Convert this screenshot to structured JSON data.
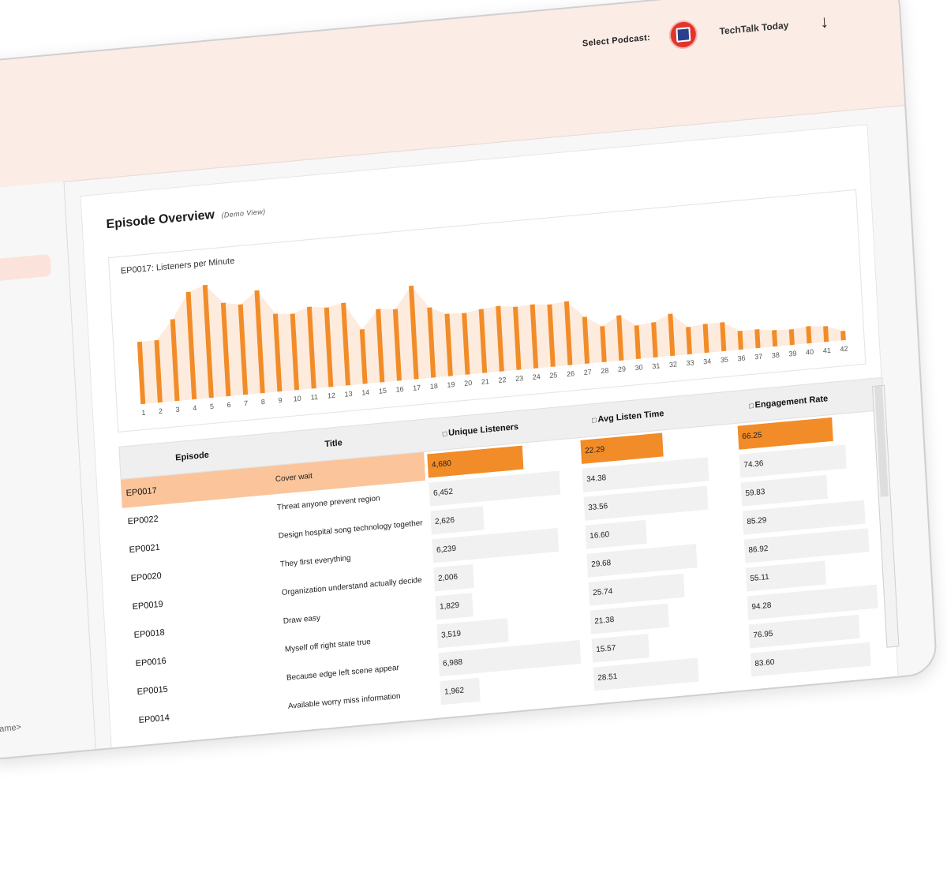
{
  "header": {
    "select_label": "Select Podcast:",
    "podcast_name": "TechTalk Today",
    "arrow_icon": "arrow-down-icon"
  },
  "sidebar": {
    "user_text": "ame>"
  },
  "main": {
    "title": "Episode Overview",
    "subtitle": "(Demo View)"
  },
  "chart_data": {
    "type": "bar",
    "title": "EP0017: Listeners per Minute",
    "categories": [
      "1",
      "2",
      "3",
      "4",
      "5",
      "6",
      "7",
      "8",
      "9",
      "10",
      "11",
      "12",
      "13",
      "14",
      "15",
      "16",
      "17",
      "18",
      "19",
      "20",
      "21",
      "22",
      "23",
      "24",
      "25",
      "26",
      "27",
      "28",
      "29",
      "30",
      "31",
      "32",
      "33",
      "34",
      "35",
      "36",
      "37",
      "38",
      "39",
      "40",
      "41",
      "42"
    ],
    "values": [
      80,
      80,
      105,
      138,
      145,
      120,
      116,
      132,
      100,
      98,
      105,
      102,
      106,
      70,
      94,
      92,
      120,
      90,
      80,
      79,
      82,
      84,
      81,
      82,
      80,
      82,
      60,
      46,
      58,
      43,
      45,
      54,
      35,
      37,
      37,
      24,
      24,
      21,
      20,
      22,
      20,
      12
    ],
    "xlabel": "",
    "ylabel": "",
    "ylim": [
      0,
      150
    ],
    "grid": false,
    "colors": {
      "bar": "#f28c28",
      "area": "#fdebde"
    }
  },
  "table": {
    "columns": {
      "episode": "Episode",
      "title": "Title",
      "unique": "Unique Listeners",
      "avg": "Avg Listen Time",
      "engagement": "Engagement Rate"
    },
    "header_icon": "sort-icon",
    "rows": [
      {
        "episode": "EP0017",
        "title": "Cover wait",
        "unique": "4,680",
        "avg": "22.29",
        "engagement": "66.25",
        "unique_frac": 0.67,
        "avg_frac": 0.58,
        "eng_frac": 0.73
      },
      {
        "episode": "EP0022",
        "title": "Threat anyone prevent region",
        "unique": "6,452",
        "avg": "34.38",
        "engagement": "74.36",
        "unique_frac": 0.92,
        "avg_frac": 0.89,
        "eng_frac": 0.82
      },
      {
        "episode": "EP0021",
        "title": "Design hospital song technology together",
        "unique": "2,626",
        "avg": "33.56",
        "engagement": "59.83",
        "unique_frac": 0.37,
        "avg_frac": 0.87,
        "eng_frac": 0.66
      },
      {
        "episode": "EP0020",
        "title": "They first everything",
        "unique": "6,239",
        "avg": "16.60",
        "engagement": "85.29",
        "unique_frac": 0.89,
        "avg_frac": 0.43,
        "eng_frac": 0.94
      },
      {
        "episode": "EP0019",
        "title": "Organization understand actually decide",
        "unique": "2,006",
        "avg": "29.68",
        "engagement": "86.92",
        "unique_frac": 0.28,
        "avg_frac": 0.77,
        "eng_frac": 0.96
      },
      {
        "episode": "EP0018",
        "title": "Draw easy",
        "unique": "1,829",
        "avg": "25.74",
        "engagement": "55.11",
        "unique_frac": 0.26,
        "avg_frac": 0.67,
        "eng_frac": 0.61
      },
      {
        "episode": "EP0016",
        "title": "Myself off right state true",
        "unique": "3,519",
        "avg": "21.38",
        "engagement": "94.28",
        "unique_frac": 0.5,
        "avg_frac": 0.55,
        "eng_frac": 1.0
      },
      {
        "episode": "EP0015",
        "title": "Because edge left scene appear",
        "unique": "6,988",
        "avg": "15.57",
        "engagement": "76.95",
        "unique_frac": 1.0,
        "avg_frac": 0.4,
        "eng_frac": 0.85
      },
      {
        "episode": "EP0014",
        "title": "Available worry miss information",
        "unique": "1,962",
        "avg": "28.51",
        "engagement": "83.60",
        "unique_frac": 0.28,
        "avg_frac": 0.74,
        "eng_frac": 0.92
      }
    ]
  }
}
